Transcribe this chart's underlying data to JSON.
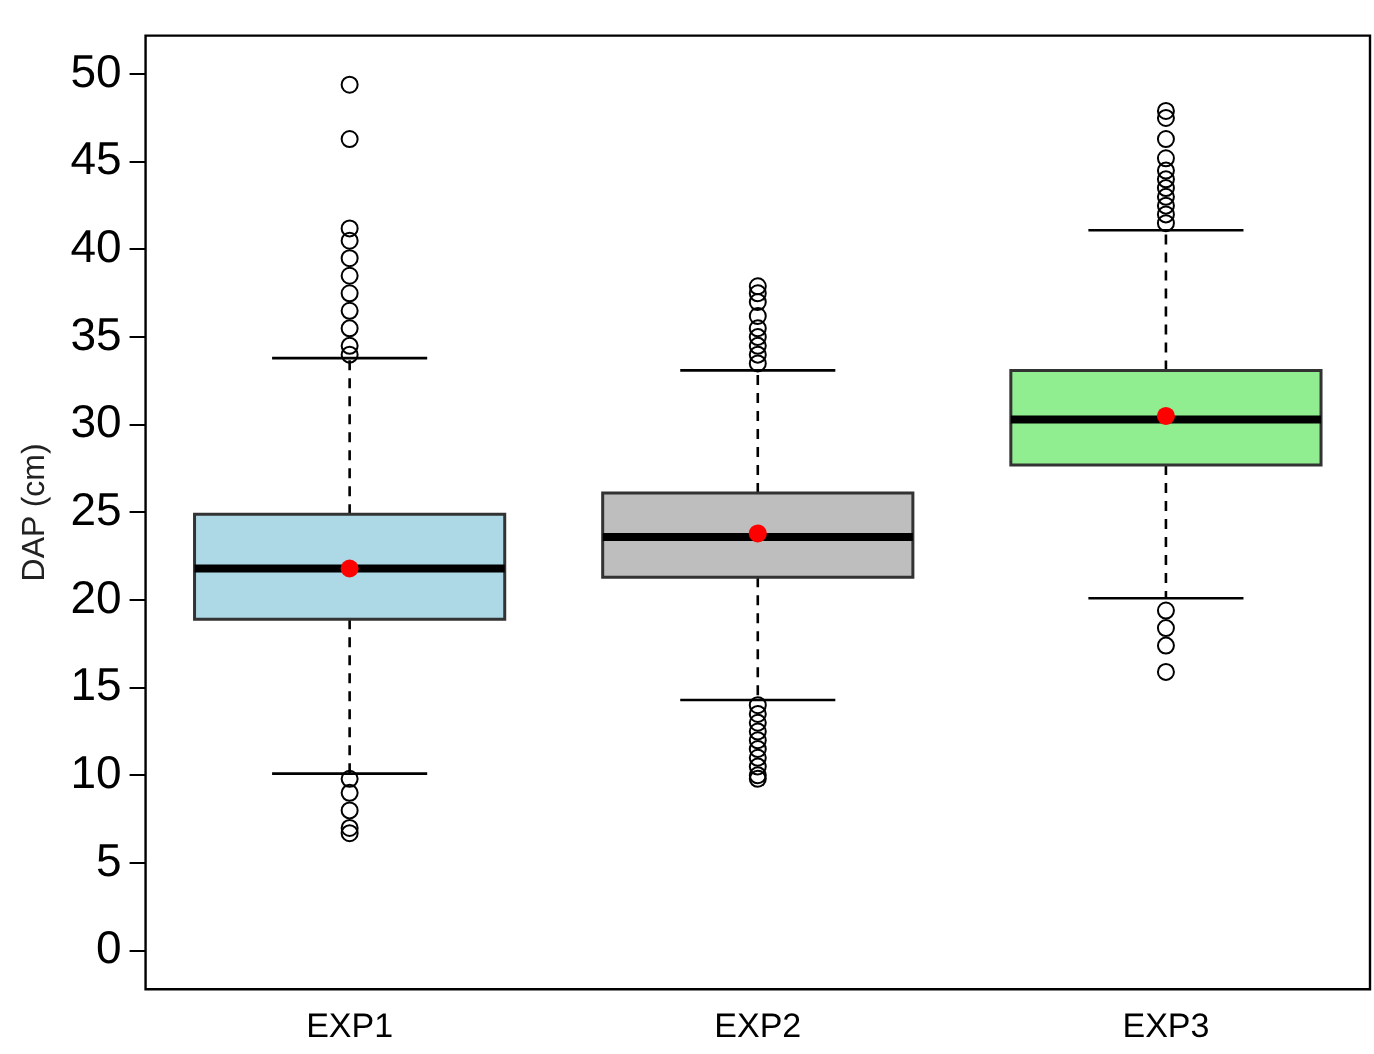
{
  "chart_data": {
    "type": "box",
    "ylabel": "DAP (cm)",
    "categories": [
      "EXP1",
      "EXP2",
      "EXP3"
    ],
    "colors": [
      "#add8e6",
      "#bebebe",
      "#90ee90"
    ],
    "boxes": [
      {
        "low": 10.1,
        "q1": 18.9,
        "median": 21.8,
        "q3": 24.9,
        "high": 33.8,
        "mean": 21.8,
        "outliers": [
          49.4,
          46.3,
          41.2,
          40.5,
          39.5,
          38.5,
          37.5,
          36.5,
          35.5,
          34.5,
          34.0,
          9.8,
          9.0,
          8.0,
          7.0,
          6.7
        ]
      },
      {
        "low": 14.3,
        "q1": 21.3,
        "median": 23.6,
        "q3": 26.1,
        "high": 33.1,
        "mean": 23.8,
        "outliers": [
          37.9,
          37.5,
          37.0,
          36.2,
          35.5,
          35.0,
          34.5,
          34.0,
          33.5,
          14.0,
          13.5,
          13.0,
          12.5,
          12.0,
          11.5,
          11.0,
          10.5,
          10.0,
          9.8
        ]
      },
      {
        "low": 20.1,
        "q1": 27.7,
        "median": 30.3,
        "q3": 33.1,
        "high": 41.1,
        "mean": 30.5,
        "outliers": [
          47.9,
          47.5,
          46.3,
          45.2,
          44.5,
          44.0,
          43.5,
          43.0,
          42.5,
          42.0,
          41.5,
          19.4,
          18.4,
          17.4,
          15.9
        ]
      }
    ],
    "ylim": [
      -2.2,
      52.2
    ],
    "yticks": [
      0,
      5,
      10,
      15,
      20,
      25,
      30,
      35,
      40,
      45,
      50
    ],
    "grid": false,
    "legend": false
  }
}
